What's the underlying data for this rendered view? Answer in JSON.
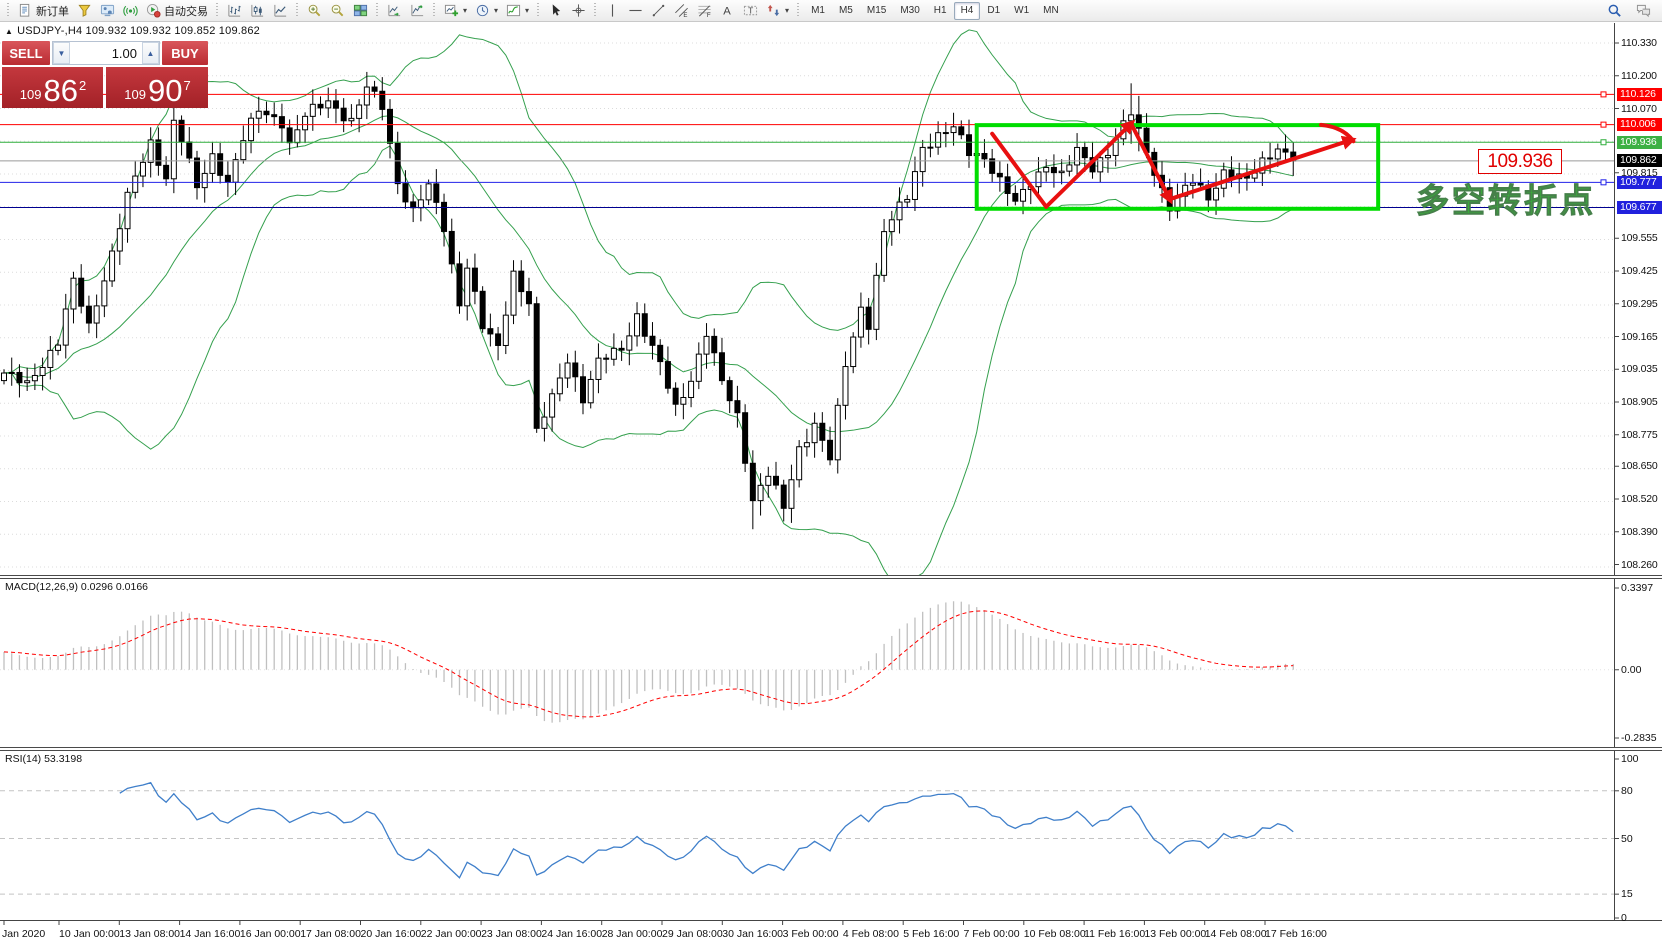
{
  "toolbar": {
    "groups": [
      {
        "items": [
          {
            "icon": "new-order",
            "label": "新订单"
          },
          {
            "icon": "funnel",
            "label": ""
          },
          {
            "icon": "community",
            "label": ""
          },
          {
            "icon": "signal",
            "label": ""
          },
          {
            "icon": "autotrade",
            "label": "自动交易"
          }
        ]
      },
      {
        "items": [
          {
            "icon": "chart-bars",
            "label": ""
          },
          {
            "icon": "chart-candles",
            "label": ""
          },
          {
            "icon": "chart-line",
            "label": ""
          }
        ]
      },
      {
        "items": [
          {
            "icon": "zoom-in",
            "label": ""
          },
          {
            "icon": "zoom-out",
            "label": ""
          },
          {
            "icon": "tile-windows",
            "label": ""
          }
        ]
      },
      {
        "items": [
          {
            "icon": "auto-scroll",
            "label": ""
          },
          {
            "icon": "chart-shift",
            "label": ""
          }
        ]
      },
      {
        "items": [
          {
            "icon": "new-chart",
            "label": "",
            "caret": true
          },
          {
            "icon": "clock",
            "label": "",
            "caret": true
          },
          {
            "icon": "indicators",
            "label": "",
            "caret": true
          }
        ]
      },
      {
        "items": [
          {
            "icon": "cursor",
            "label": ""
          },
          {
            "icon": "crosshair",
            "label": ""
          }
        ]
      },
      {
        "items": [
          {
            "icon": "vline",
            "label": ""
          },
          {
            "icon": "hline",
            "label": ""
          },
          {
            "icon": "trendline",
            "label": ""
          },
          {
            "icon": "channel",
            "label": ""
          },
          {
            "icon": "fibonacci",
            "label": ""
          },
          {
            "icon": "text",
            "label": ""
          },
          {
            "icon": "text-label",
            "label": ""
          },
          {
            "icon": "arrows",
            "label": "",
            "caret": true
          }
        ]
      }
    ],
    "timeframes": [
      "M1",
      "M5",
      "M15",
      "M30",
      "H1",
      "H4",
      "D1",
      "W1",
      "MN"
    ],
    "active_timeframe": "H4",
    "right_icons": [
      "search",
      "chat"
    ]
  },
  "symbol_bar": {
    "collapse_icon": "▲",
    "text": "USDJPY-,H4  109.932 109.932 109.852 109.862"
  },
  "trade_panel": {
    "sell_label": "SELL",
    "buy_label": "BUY",
    "volume": "1.00",
    "spin_down_icon": "▼",
    "spin_up_icon": "▲",
    "sell_price_prefix": "109",
    "sell_price_big": "86",
    "sell_price_sup": "2",
    "buy_price_prefix": "109",
    "buy_price_big": "90",
    "buy_price_sup": "7"
  },
  "price_axis": {
    "ticks": [
      "110.330",
      "110.200",
      "110.070",
      "109.815",
      "109.555",
      "109.425",
      "109.295",
      "109.165",
      "109.035",
      "108.905",
      "108.775",
      "108.650",
      "108.520",
      "108.390",
      "108.260"
    ],
    "badges": [
      {
        "value": "110.126",
        "bg": "#ff0000"
      },
      {
        "value": "110.006",
        "bg": "#ff0000"
      },
      {
        "value": "109.936",
        "bg": "#3cb043"
      },
      {
        "value": "109.862",
        "bg": "#000000"
      },
      {
        "value": "109.777",
        "bg": "#2121dd"
      },
      {
        "value": "109.677",
        "bg": "#2121dd"
      }
    ]
  },
  "macd_panel": {
    "label": "MACD(12,26,9) 0.0296 0.0166"
  },
  "rsi_panel": {
    "label": "RSI(14) 53.3198"
  },
  "annotations": {
    "price_label": "109.936",
    "note_text": "多空转折点"
  },
  "time_axis": {
    "labels": [
      "Jan 2020",
      "10 Jan 00:00",
      "13 Jan 08:00",
      "14 Jan 16:00",
      "16 Jan 00:00",
      "17 Jan 08:00",
      "20 Jan 16:00",
      "22 Jan 00:00",
      "23 Jan 08:00",
      "24 Jan 16:00",
      "28 Jan 00:00",
      "29 Jan 08:00",
      "30 Jan 16:00",
      "3 Feb 00:00",
      "4 Feb 08:00",
      "5 Feb 16:00",
      "7 Feb 00:00",
      "10 Feb 08:00",
      "11 Feb 16:00",
      "13 Feb 00:00",
      "14 Feb 08:00",
      "17 Feb 16:00"
    ]
  },
  "chart_data": {
    "type": "candlestick",
    "symbol": "USDJPY-",
    "timeframe": "H4",
    "title": "USDJPY-,H4",
    "current_bar": {
      "open": 109.932,
      "high": 109.932,
      "low": 109.852,
      "close": 109.862
    },
    "bid": 109.862,
    "ask": 109.907,
    "visible_price_range": [
      108.26,
      110.33
    ],
    "grid_top": 110.33,
    "grid_step": 0.13,
    "bars_count": 168,
    "price_path_anchors": [
      [
        0,
        109.02
      ],
      [
        3,
        108.97
      ],
      [
        7,
        109.15
      ],
      [
        9,
        109.38
      ],
      [
        11,
        109.2
      ],
      [
        14,
        109.5
      ],
      [
        16,
        109.72
      ],
      [
        19,
        109.93
      ],
      [
        21,
        109.8
      ],
      [
        22,
        110.02
      ],
      [
        23,
        109.95
      ],
      [
        25,
        109.75
      ],
      [
        27,
        109.88
      ],
      [
        29,
        109.78
      ],
      [
        31,
        109.95
      ],
      [
        33,
        110.06
      ],
      [
        36,
        110.02
      ],
      [
        37,
        109.93
      ],
      [
        39,
        110.04
      ],
      [
        42,
        110.1
      ],
      [
        45,
        110.02
      ],
      [
        47,
        110.15
      ],
      [
        49,
        110.08
      ],
      [
        51,
        109.78
      ],
      [
        53,
        109.66
      ],
      [
        55,
        109.76
      ],
      [
        57,
        109.6
      ],
      [
        59,
        109.3
      ],
      [
        60,
        109.45
      ],
      [
        62,
        109.2
      ],
      [
        64,
        109.12
      ],
      [
        66,
        109.42
      ],
      [
        68,
        109.3
      ],
      [
        69,
        108.78
      ],
      [
        71,
        108.92
      ],
      [
        73,
        109.08
      ],
      [
        75,
        108.92
      ],
      [
        77,
        109.06
      ],
      [
        80,
        109.12
      ],
      [
        82,
        109.25
      ],
      [
        85,
        109.05
      ],
      [
        87,
        108.88
      ],
      [
        89,
        109.0
      ],
      [
        91,
        109.18
      ],
      [
        93,
        108.98
      ],
      [
        95,
        108.85
      ],
      [
        97,
        108.52
      ],
      [
        99,
        108.62
      ],
      [
        101,
        108.48
      ],
      [
        103,
        108.72
      ],
      [
        105,
        108.82
      ],
      [
        107,
        108.68
      ],
      [
        109,
        109.05
      ],
      [
        111,
        109.28
      ],
      [
        112,
        109.22
      ],
      [
        114,
        109.58
      ],
      [
        117,
        109.72
      ],
      [
        119,
        109.92
      ],
      [
        121,
        109.96
      ],
      [
        123,
        109.99
      ],
      [
        125,
        109.9
      ],
      [
        127,
        109.88
      ],
      [
        129,
        109.78
      ],
      [
        131,
        109.69
      ],
      [
        133,
        109.78
      ],
      [
        135,
        109.85
      ],
      [
        137,
        109.8
      ],
      [
        139,
        109.9
      ],
      [
        141,
        109.84
      ],
      [
        143,
        109.9
      ],
      [
        145,
        110.0
      ],
      [
        146,
        110.05
      ],
      [
        148,
        109.9
      ],
      [
        150,
        109.75
      ],
      [
        151,
        109.68
      ],
      [
        154,
        109.78
      ],
      [
        156,
        109.72
      ],
      [
        158,
        109.82
      ],
      [
        161,
        109.78
      ],
      [
        163,
        109.86
      ],
      [
        165,
        109.92
      ],
      [
        167,
        109.862
      ]
    ],
    "wick_overrides": {
      "97": [
        108.6,
        108.4
      ],
      "146": [
        110.17,
        109.93
      ],
      "147": [
        110.12,
        109.9
      ]
    },
    "bollinger": {
      "period": 20,
      "deviation": 2,
      "color": "#35a04e"
    },
    "horizontal_levels": [
      {
        "price": 110.126,
        "color": "#ff0000",
        "handle": true
      },
      {
        "price": 110.006,
        "color": "#ff0000",
        "handle": true
      },
      {
        "price": 109.936,
        "color": "#2fae3c",
        "handle": true
      },
      {
        "price": 109.862,
        "color": "#9a9a9a",
        "handle": false
      },
      {
        "price": 109.777,
        "color": "#2222e8",
        "handle": true
      },
      {
        "price": 109.677,
        "color": "#000090",
        "handle": false
      }
    ],
    "macd": {
      "fast": 12,
      "slow": 26,
      "signal": 9,
      "current": 0.0296,
      "current_signal": 0.0166,
      "ylim": [
        -0.2835,
        0.3397
      ],
      "axis_values": [
        0.3397,
        0,
        -0.2835
      ],
      "axis_labels": [
        "0.3397",
        "0.00",
        "-0.2835"
      ],
      "histogram_color": "#c0c0c0",
      "signal_color": "#ff0000"
    },
    "rsi": {
      "period": 14,
      "current": 53.3198,
      "levels": [
        80,
        50,
        15
      ],
      "ylim": [
        0,
        100
      ],
      "axis_values": [
        100,
        80,
        50,
        15,
        0
      ],
      "axis_labels": [
        "100",
        "80",
        "50",
        "15",
        "0"
      ],
      "line_color": "#3f7fca"
    },
    "annotations": {
      "box": {
        "bar_from": 126,
        "bar_to": 178,
        "price_top": 110.004,
        "price_bottom": 109.672,
        "color": "#00dd00"
      },
      "zigzag": {
        "color": "#e81010",
        "points": [
          [
            128,
            109.97
          ],
          [
            135,
            109.68
          ],
          [
            146,
            110.01
          ],
          [
            151,
            109.71
          ],
          [
            174.5,
            109.945
          ]
        ],
        "arrow_vertices": [
          2,
          3,
          4
        ],
        "hook": [
          [
            170.6,
            110.005
          ],
          [
            174.8,
            109.94
          ]
        ]
      }
    }
  }
}
